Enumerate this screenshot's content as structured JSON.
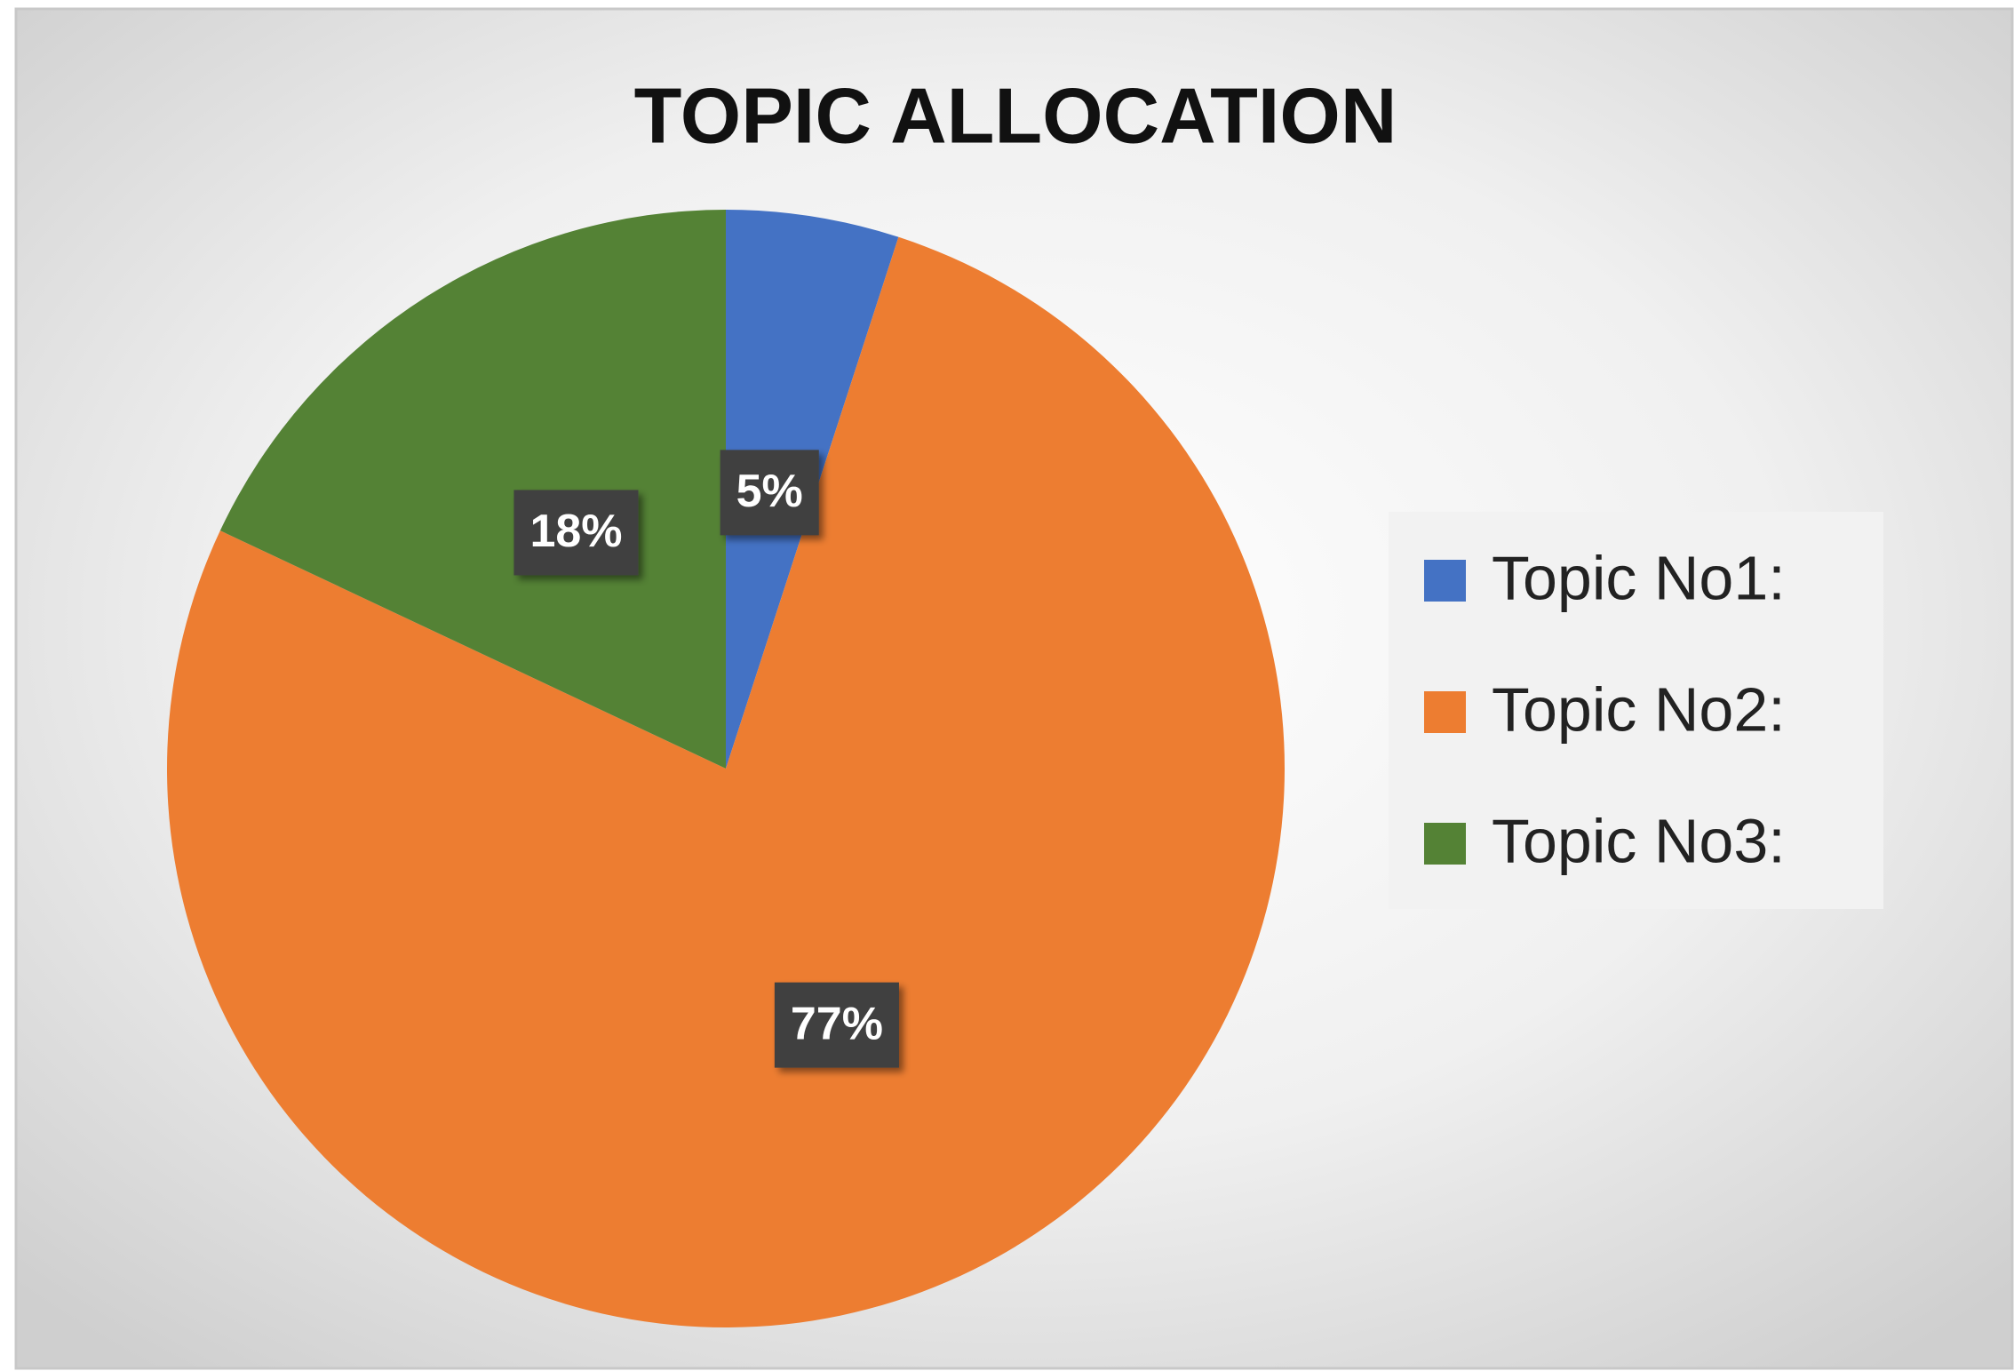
{
  "chart_data": {
    "type": "pie",
    "title": "TOPIC ALLOCATION",
    "categories": [
      "Topic No1:",
      "Topic No2:",
      "Topic No3:"
    ],
    "values": [
      5,
      77,
      18
    ],
    "value_labels": [
      "5%",
      "77%",
      "18%"
    ],
    "colors": [
      "#4472c4",
      "#ed7d31",
      "#548235"
    ],
    "legend": "right"
  }
}
